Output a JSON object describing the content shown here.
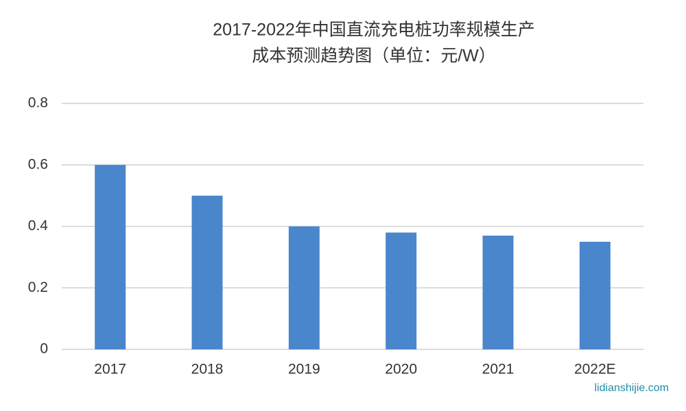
{
  "chart_data": {
    "type": "bar",
    "title": [
      "2017-2022年中国直流充电桩功率规模生产",
      "成本预测趋势图（单位：元/W）"
    ],
    "categories": [
      "2017",
      "2018",
      "2019",
      "2020",
      "2021",
      "2022E"
    ],
    "values": [
      0.6,
      0.5,
      0.4,
      0.38,
      0.37,
      0.35
    ],
    "color": "#4a86cc",
    "ylim": [
      0,
      0.8
    ],
    "yticks": [
      0,
      0.2,
      0.4,
      0.6,
      0.8
    ],
    "grid": true,
    "watermark": "lidianshijie.com"
  }
}
